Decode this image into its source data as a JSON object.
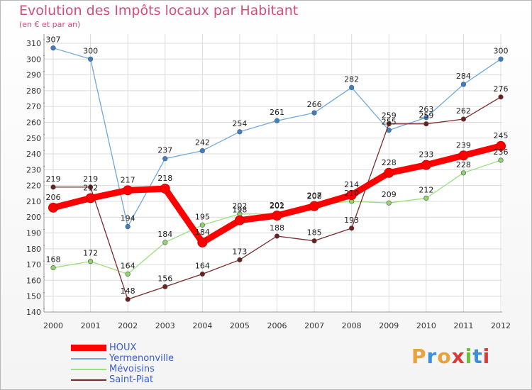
{
  "header": {
    "title": "Evolution des Impôts locaux par Habitant",
    "subtitle": "(en € et par an)"
  },
  "chart_data": {
    "type": "line",
    "title": "Evolution des Impôts locaux par Habitant",
    "subtitle": "(en € et par an)",
    "xlabel": "",
    "ylabel": "",
    "ylim": [
      140,
      310
    ],
    "ytick_step": 10,
    "grid": true,
    "categories": [
      "2000",
      "2001",
      "2002",
      "2003",
      "2004",
      "2005",
      "2006",
      "2007",
      "2008",
      "2009",
      "2010",
      "2011",
      "2012"
    ],
    "series": [
      {
        "name": "Yermenonville",
        "color": "#6fa8dc",
        "point_color": "#3c7fc4",
        "bold": false,
        "values": [
          307,
          300,
          194,
          237,
          242,
          254,
          261,
          266,
          282,
          255,
          263,
          284,
          300
        ]
      },
      {
        "name": "Mévoisins",
        "color": "#9be07a",
        "point_color": "#8fd46a",
        "bold": false,
        "values": [
          168,
          172,
          164,
          184,
          195,
          202,
          202,
          208,
          210,
          209,
          212,
          228,
          236
        ]
      },
      {
        "name": "Saint-Piat",
        "color": "#7a2a2a",
        "point_color": "#6b1f1f",
        "bold": false,
        "values": [
          219,
          219,
          148,
          156,
          164,
          173,
          188,
          185,
          193,
          259,
          259,
          262,
          276
        ]
      },
      {
        "name": "HOUX",
        "color": "#ff0000",
        "point_color": "#ff0000",
        "bold": true,
        "values": [
          206,
          212,
          217,
          218,
          184,
          198,
          201,
          207,
          214,
          228,
          233,
          239,
          245
        ]
      }
    ],
    "legend_order": [
      "HOUX",
      "Yermenonville",
      "Mévoisins",
      "Saint-Piat"
    ],
    "legend_position": "bottom-left"
  },
  "logo": {
    "letters": [
      "P",
      "r",
      "o",
      "x",
      "i",
      "t",
      "i"
    ],
    "colors": [
      "#e8a33c",
      "#3a8fd6",
      "#e8a33c",
      "#d93a3a",
      "#6cbf3a",
      "#3a8fd6",
      "#d93a3a"
    ]
  }
}
